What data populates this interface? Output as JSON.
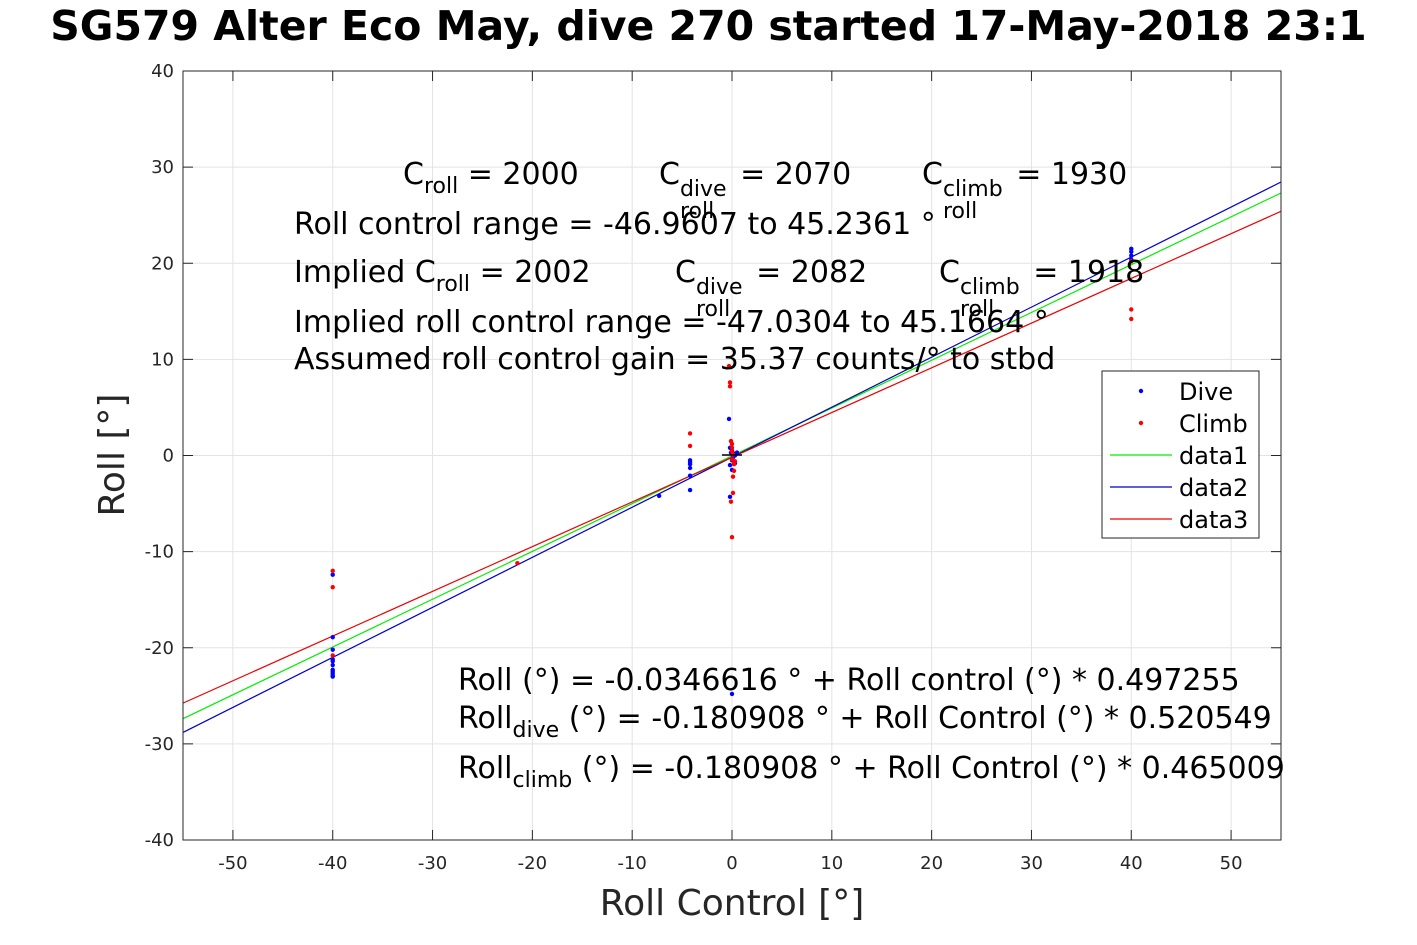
{
  "chart_data": {
    "type": "scatter",
    "title": "SG579 Alter Eco May, dive 270 started 17-May-2018 23:1",
    "xlabel": "Roll Control [°]",
    "ylabel": "Roll [°]",
    "xlim": [
      -55,
      55
    ],
    "ylim": [
      -40,
      40
    ],
    "xticks": [
      -50,
      -40,
      -30,
      -20,
      -10,
      0,
      10,
      20,
      30,
      40,
      50
    ],
    "yticks": [
      -40,
      -30,
      -20,
      -10,
      0,
      10,
      20,
      30,
      40
    ],
    "grid": true,
    "legend_position": "right",
    "colors": {
      "dive": "#0000ff",
      "climb": "#ff0000",
      "data1": "#00ee00",
      "data2": "#0000cc",
      "data3": "#ee0000"
    },
    "series": [
      {
        "name": "Dive",
        "kind": "points",
        "x": [
          -40,
          -40,
          -40,
          -40,
          -40,
          -40,
          -40,
          -40,
          -40,
          -40,
          -40,
          -7.3,
          -4.2,
          -4.2,
          -4.2,
          -4.2,
          -4.2,
          -4.2,
          -0.3,
          -0.2,
          -0.2,
          -0.2,
          -0.1,
          0,
          0,
          0,
          0,
          0.1,
          0.2,
          0.3,
          0.3,
          0.5,
          40,
          40,
          40,
          40
        ],
        "y": [
          -12.4,
          -18.9,
          -20.2,
          -21.4,
          -21.8,
          -22.3,
          -22.5,
          -22.7,
          -22.9,
          -23,
          -21.2,
          -4.2,
          -0.5,
          -0.9,
          -1.3,
          -2.1,
          -3.6,
          -0.7,
          3.8,
          -4.3,
          0.8,
          -1,
          0.3,
          -0.5,
          -24.8,
          -1.5,
          0.5,
          -0.2,
          0.2,
          -0.8,
          0,
          0.3,
          21.5,
          21.2,
          20.8,
          20.4
        ]
      },
      {
        "name": "Climb",
        "kind": "points",
        "x": [
          -40,
          -40,
          -40,
          -21.5,
          -4.2,
          -4.2,
          -0.3,
          -0.2,
          -0.2,
          -0.1,
          -0.1,
          0,
          0,
          0,
          0,
          0,
          0.1,
          0.1,
          0.1,
          0.2,
          0.2,
          0.3,
          40,
          40,
          40
        ],
        "y": [
          -12,
          -13.7,
          -20.8,
          -11.2,
          2.3,
          1,
          9.3,
          7.6,
          7.2,
          1.5,
          -4.8,
          1.2,
          0.8,
          0.4,
          -0.4,
          -8.5,
          -2.2,
          -3.9,
          0.1,
          -0.9,
          -1.6,
          -0.6,
          20.2,
          15.2,
          14.2
        ]
      },
      {
        "name": "data1",
        "kind": "line",
        "x": [
          -55,
          55
        ],
        "y": [
          -27.38,
          27.31
        ]
      },
      {
        "name": "data2",
        "kind": "line",
        "x": [
          -55,
          55
        ],
        "y": [
          -28.81,
          28.45
        ]
      },
      {
        "name": "data3",
        "kind": "line",
        "x": [
          -55,
          55
        ],
        "y": [
          -25.76,
          25.4
        ]
      }
    ],
    "legend": [
      "Dive",
      "Climb",
      "data1",
      "data2",
      "data3"
    ],
    "annotations": {
      "c_line": {
        "c_main": "C",
        "c_sub": "roll",
        "c_val": " = 2000",
        "cd_main": "C",
        "cd_sup": "dive",
        "cd_sub": "roll",
        "cd_val": " = 2070",
        "cc_main": "C",
        "cc_sup": "climb",
        "cc_sub": "roll",
        "cc_val": " = 1930"
      },
      "range_line": "Roll control range = -46.9607 to 45.2361 °",
      "implied_line": {
        "lead": "Implied C",
        "sub": "roll",
        "val": " = 2002",
        "cd_main": "C",
        "cd_sup": "dive",
        "cd_sub": "roll",
        "cd_val": " = 2082",
        "cc_main": "C",
        "cc_sup": "climb",
        "cc_sub": "roll",
        "cc_val": " = 1918"
      },
      "implied_range_line": "Implied roll control range = -47.0304 to 45.1664 °",
      "gain_line": "Assumed roll control gain = 35.37 counts/° to stbd",
      "fit_line": "Roll (°) = -0.0346616 ° + Roll control (°) * 0.497255",
      "fit_dive": {
        "main": "Roll",
        "sub": "dive",
        "rest": " (°) = -0.180908 ° + Roll Control (°) * 0.520549"
      },
      "fit_climb": {
        "main": "Roll",
        "sub": "climb",
        "rest": " (°) = -0.180908 ° + Roll Control (°) * 0.465009"
      }
    }
  }
}
